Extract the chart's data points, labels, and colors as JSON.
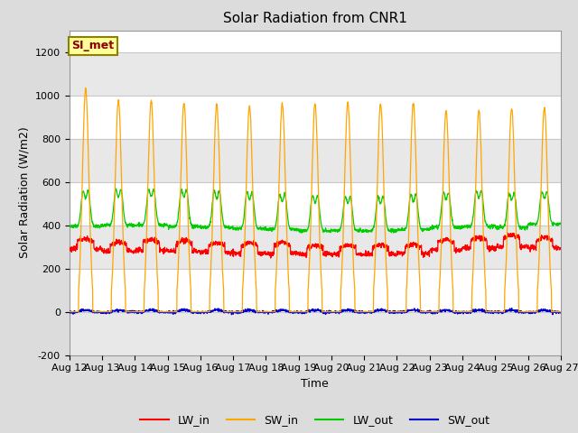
{
  "title": "Solar Radiation from CNR1",
  "xlabel": "Time",
  "ylabel": "Solar Radiation (W/m2)",
  "ylim": [
    -200,
    1300
  ],
  "yticks": [
    -200,
    0,
    200,
    400,
    600,
    800,
    1000,
    1200
  ],
  "x_tick_labels": [
    "Aug 12",
    "Aug 13",
    "Aug 14",
    "Aug 15",
    "Aug 16",
    "Aug 17",
    "Aug 18",
    "Aug 19",
    "Aug 20",
    "Aug 21",
    "Aug 22",
    "Aug 23",
    "Aug 24",
    "Aug 25",
    "Aug 26",
    "Aug 27"
  ],
  "annotation_text": "SI_met",
  "annotation_color": "#8B0000",
  "annotation_bg": "#FFFF99",
  "annotation_border": "#8B8000",
  "colors": {
    "LW_in": "#FF0000",
    "SW_in": "#FFA500",
    "LW_out": "#00CC00",
    "SW_out": "#0000CC"
  },
  "bg_color": "#DCDCDC",
  "plot_bg": "#FFFFFF",
  "band_color": "#E8E8E8",
  "grid_color": "#C8C8C8",
  "n_days": 15,
  "SW_in_peaks": [
    1030,
    975,
    975,
    965,
    960,
    950,
    960,
    960,
    965,
    960,
    965,
    930,
    930,
    940,
    940
  ],
  "LW_out_peaks": [
    660,
    665,
    665,
    665,
    660,
    655,
    640,
    635,
    630,
    630,
    640,
    650,
    660,
    645,
    645
  ],
  "LW_out_min": [
    395,
    400,
    400,
    395,
    390,
    385,
    380,
    375,
    375,
    375,
    380,
    390,
    395,
    390,
    405
  ],
  "LW_in_day": [
    325,
    310,
    320,
    315,
    305,
    305,
    305,
    295,
    295,
    295,
    300,
    320,
    330,
    340,
    330
  ],
  "LW_in_night": [
    290,
    280,
    285,
    280,
    275,
    270,
    270,
    265,
    265,
    265,
    270,
    285,
    295,
    300,
    295
  ],
  "SW_out_day_max": 25,
  "title_fontsize": 11,
  "axis_fontsize": 9,
  "tick_fontsize": 8
}
